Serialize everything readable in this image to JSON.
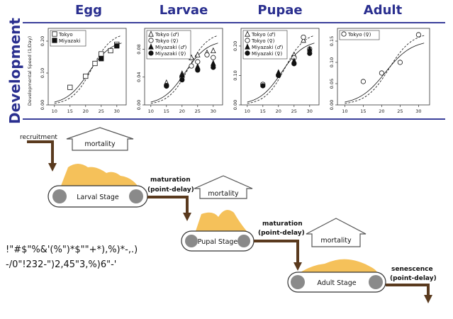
{
  "section_label": "Development",
  "y_axis_label": "Developmental Speed (1/Day)",
  "palette": {
    "title_blue": "#2a2f8f",
    "rule_blue": "#3a3f9a",
    "arrow_brown": "#5a3a1e",
    "fill_orange": "#f5c15a",
    "roller_gray": "#8a8a8a"
  },
  "chart_data": [
    {
      "type": "scatter",
      "title": "Egg",
      "x_ticks": [
        "10",
        "15",
        "20",
        "25",
        "30"
      ],
      "y_ticks": [
        "0.00",
        "0.10",
        "0.20"
      ],
      "xlim": [
        8,
        33
      ],
      "ylim": [
        0.0,
        0.24
      ],
      "legend": "top-left",
      "series": [
        {
          "name": "Tokyo",
          "marker": "square-open",
          "x": [
            15,
            20,
            23,
            25,
            28,
            30
          ],
          "y": [
            0.055,
            0.09,
            0.13,
            0.16,
            0.17,
            0.19
          ]
        },
        {
          "name": "Miyazaki",
          "marker": "square-filled",
          "x": [
            25,
            30
          ],
          "y": [
            0.145,
            0.185
          ]
        }
      ]
    },
    {
      "type": "scatter",
      "title": "Larvae",
      "x_ticks": [
        "10",
        "15",
        "20",
        "25",
        "30"
      ],
      "y_ticks": [
        "0.00",
        "0.04",
        "0.08"
      ],
      "xlim": [
        8,
        33
      ],
      "ylim": [
        0.0,
        0.11
      ],
      "legend": "top-left",
      "series": [
        {
          "name": "Tokyo (♂)",
          "marker": "triangle-open",
          "x": [
            15,
            20,
            23,
            25,
            28,
            30
          ],
          "y": [
            0.032,
            0.045,
            0.068,
            0.072,
            0.075,
            0.078
          ]
        },
        {
          "name": "Tokyo (♀)",
          "marker": "circle-open",
          "x": [
            15,
            20,
            23,
            25,
            28,
            30
          ],
          "y": [
            0.028,
            0.04,
            0.056,
            0.062,
            0.072,
            0.068
          ]
        },
        {
          "name": "Miyazaki (♂)",
          "marker": "triangle-filled",
          "x": [
            20,
            25,
            30
          ],
          "y": [
            0.043,
            0.055,
            0.06
          ]
        },
        {
          "name": "Miyazaki (♀)",
          "marker": "circle-filled",
          "x": [
            15,
            20,
            25,
            30
          ],
          "y": [
            0.027,
            0.036,
            0.05,
            0.054
          ]
        }
      ]
    },
    {
      "type": "scatter",
      "title": "Pupae",
      "x_ticks": [
        "10",
        "15",
        "20",
        "25",
        "30"
      ],
      "y_ticks": [
        "0.00",
        "0.10",
        "0.20"
      ],
      "xlim": [
        8,
        33
      ],
      "ylim": [
        0.0,
        0.26
      ],
      "legend": "top-left",
      "series": [
        {
          "name": "Tokyo (♂)",
          "marker": "triangle-open",
          "x": [
            20,
            25,
            28
          ],
          "y": [
            0.11,
            0.17,
            0.22
          ]
        },
        {
          "name": "Tokyo (♀)",
          "marker": "circle-open",
          "x": [
            15,
            20,
            25,
            28,
            30
          ],
          "y": [
            0.07,
            0.1,
            0.16,
            0.23,
            0.19
          ]
        },
        {
          "name": "Miyazaki (♂)",
          "marker": "triangle-filled",
          "x": [
            20,
            25,
            30
          ],
          "y": [
            0.11,
            0.15,
            0.19
          ]
        },
        {
          "name": "Miyazaki (♀)",
          "marker": "circle-filled",
          "x": [
            15,
            20,
            25,
            30
          ],
          "y": [
            0.065,
            0.1,
            0.14,
            0.175
          ]
        }
      ]
    },
    {
      "type": "scatter",
      "title": "Adult",
      "x_ticks": [
        "10",
        "15",
        "20",
        "25",
        "30"
      ],
      "y_ticks": [
        "0.00",
        "0.05",
        "0.10",
        "0.15"
      ],
      "xlim": [
        8,
        33
      ],
      "ylim": [
        0.0,
        0.18
      ],
      "legend": "top-left",
      "series": [
        {
          "name": "Tokyo (♀)",
          "marker": "circle-open",
          "x": [
            15,
            20,
            25,
            30
          ],
          "y": [
            0.055,
            0.075,
            0.1,
            0.165
          ]
        }
      ]
    }
  ],
  "flow": {
    "recruitment": "recruitment",
    "mortality": "mortality",
    "larval_stage": "Larval Stage",
    "pupal_stage": "Pupal Stage",
    "adult_stage": "Adult Stage",
    "maturation": "maturation",
    "point_delay": "(point-delay)",
    "senescence": "senescence"
  },
  "garbled_text": {
    "line1": "!\"#$\"%&'(%\")*$\"\"+*),%)*-,.)",
    "line2": "-/0\"!232-\")2,45\"3,%)6\"-'"
  }
}
